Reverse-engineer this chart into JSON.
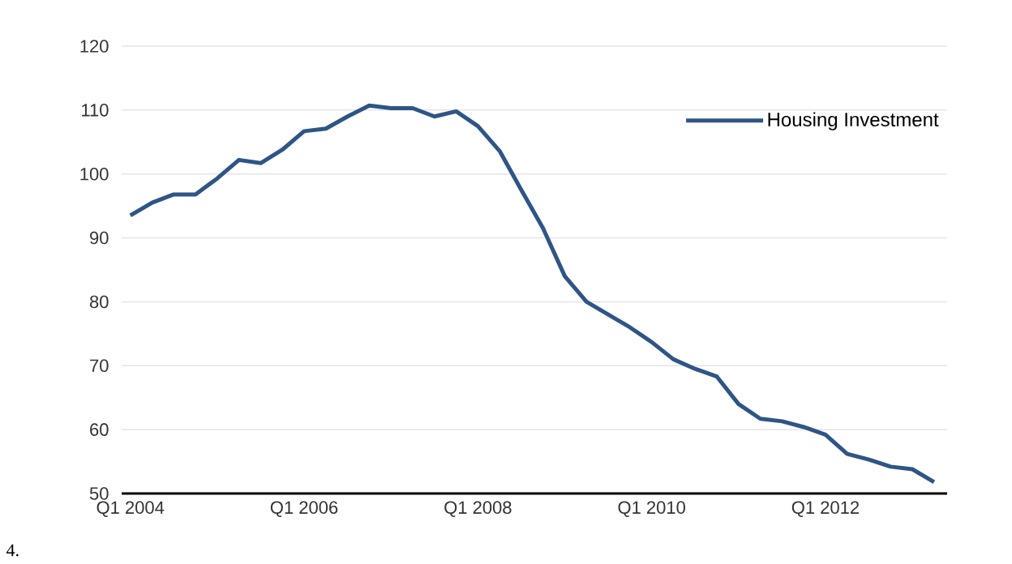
{
  "chart_data": {
    "type": "line",
    "categories": [
      "Q1 2004",
      null,
      null,
      null,
      null,
      null,
      null,
      null,
      "Q1 2006",
      null,
      null,
      null,
      null,
      null,
      null,
      null,
      "Q1 2008",
      null,
      null,
      null,
      null,
      null,
      null,
      null,
      "Q1 2010",
      null,
      null,
      null,
      null,
      null,
      null,
      null,
      "Q1 2012",
      null,
      null,
      null,
      null,
      null
    ],
    "series": [
      {
        "name": "Housing Investment",
        "color": "#2e5586",
        "values": [
          93.5,
          95.5,
          96.8,
          96.8,
          99.3,
          102.2,
          101.7,
          103.8,
          106.7,
          107.1,
          109,
          110.7,
          110.3,
          110.3,
          109,
          109.8,
          107.5,
          103.6,
          97.5,
          91.5,
          84,
          80,
          78,
          76,
          73.7,
          71,
          69.5,
          68.3,
          64,
          61.7,
          61.3,
          60.4,
          59.2,
          56.2,
          55.3,
          54.2,
          53.8,
          51.8
        ]
      }
    ],
    "ylim": [
      50,
      120
    ],
    "yticks": [
      50,
      60,
      70,
      80,
      90,
      100,
      110,
      120
    ],
    "grid": "y",
    "legend": "top right",
    "marker": "none",
    "line_style": "solid",
    "annotations": [
      "4."
    ]
  }
}
